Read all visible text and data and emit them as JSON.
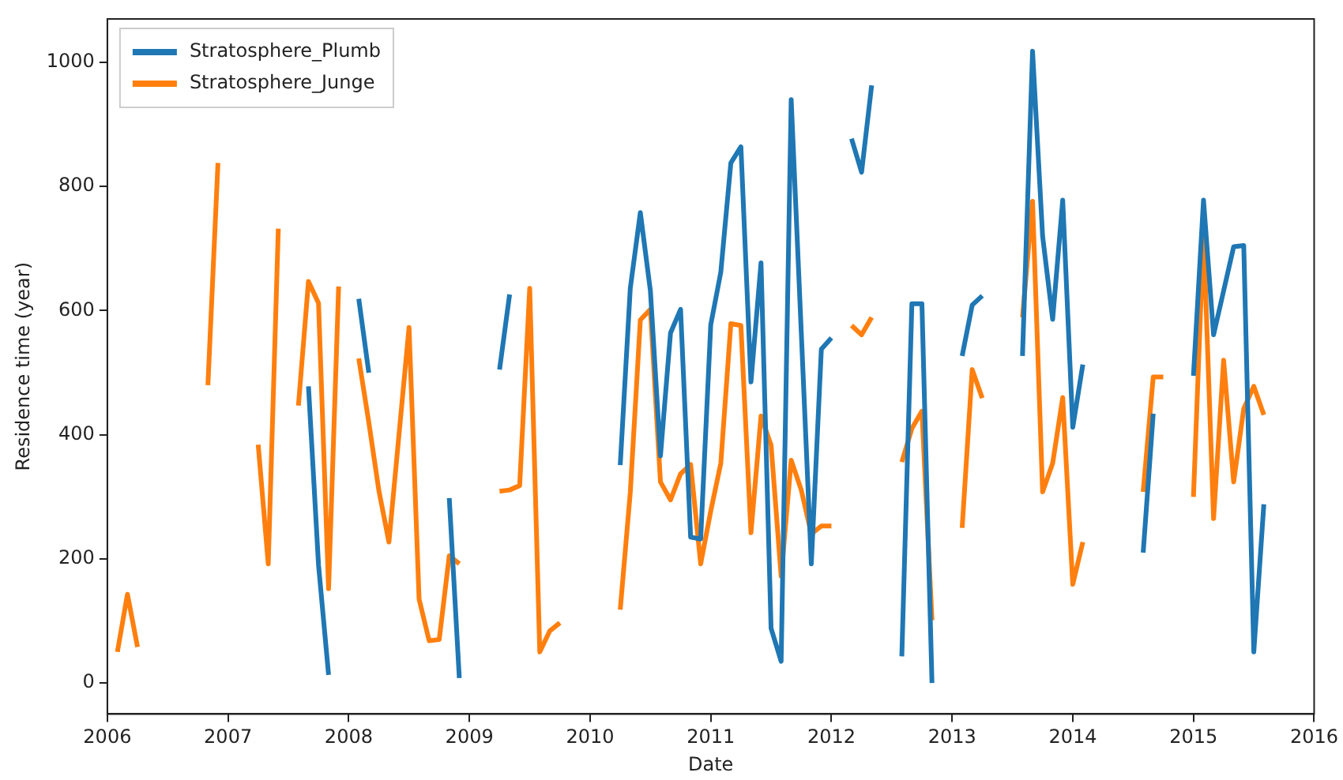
{
  "chart_data": {
    "type": "line",
    "xlabel": "Date",
    "ylabel": "Residence time (year)",
    "legend": "top left",
    "marker": "none",
    "line_style": "solid",
    "grid": false,
    "xlim": [
      "2006",
      "2016"
    ],
    "xticks": [
      "2006",
      "2007",
      "2008",
      "2009",
      "2010",
      "2011",
      "2012",
      "2013",
      "2014",
      "2015",
      "2016"
    ],
    "ylim": [
      -50,
      1070
    ],
    "yticks": [
      0,
      200,
      400,
      600,
      800,
      1000
    ],
    "series": [
      {
        "name": "Stratosphere_Plumb",
        "color": "#1f77b4",
        "x": [
          "2007-09",
          "2007-10",
          "2007-11",
          "2008-01",
          "2008-02",
          "2008-03",
          "2008-06",
          "2008-11",
          "2008-12",
          "2009-02",
          "2009-04",
          "2009-05",
          "2009-10",
          "2010-04",
          "2010-05",
          "2010-06",
          "2010-07",
          "2010-08",
          "2010-09",
          "2010-10",
          "2010-11",
          "2010-12",
          "2011-01",
          "2011-02",
          "2011-03",
          "2011-04",
          "2011-05",
          "2011-06",
          "2011-07",
          "2011-08",
          "2011-09",
          "2011-10",
          "2011-11",
          "2011-12",
          "2012-01",
          "2012-02",
          "2012-03",
          "2012-04",
          "2012-05",
          "2012-06",
          "2012-08",
          "2012-09",
          "2012-10",
          "2012-11",
          "2013-01",
          "2013-02",
          "2013-03",
          "2013-04",
          "2013-06",
          "2013-08",
          "2013-09",
          "2013-10",
          "2013-11",
          "2013-12",
          "2014-01",
          "2014-02",
          "2014-05",
          "2014-08",
          "2014-09",
          "2014-11",
          "2015-01",
          "2015-02",
          "2015-03",
          "2015-04",
          "2015-05",
          "2015-06",
          "2015-07",
          "2015-08"
        ],
        "values": [
          478,
          190,
          13,
          null,
          619,
          500,
          null,
          298,
          8,
          null,
          505,
          626,
          null,
          351,
          636,
          758,
          632,
          366,
          564,
          602,
          235,
          232,
          577,
          662,
          838,
          864,
          485,
          677,
          88,
          35,
          940,
          566,
          192,
          538,
          556,
          null,
          877,
          823,
          963,
          null,
          43,
          611,
          611,
          0,
          null,
          527,
          609,
          624,
          null,
          527,
          1018,
          720,
          586,
          778,
          412,
          513,
          null,
          210,
          434,
          null,
          495,
          778,
          561,
          632,
          703,
          705,
          50,
          288
        ]
      },
      {
        "name": "Stratosphere_Junge",
        "color": "#ff7f0e",
        "x": [
          "2006-02",
          "2006-03",
          "2006-04",
          "2006-07",
          "2006-11",
          "2006-12",
          "2007-02",
          "2007-04",
          "2007-05",
          "2007-06",
          "2007-07",
          "2007-08",
          "2007-09",
          "2007-10",
          "2007-11",
          "2007-12",
          "2008-01",
          "2008-02",
          "2008-03",
          "2008-04",
          "2008-05",
          "2008-06",
          "2008-07",
          "2008-08",
          "2008-09",
          "2008-10",
          "2008-11",
          "2008-12",
          "2009-02",
          "2009-04",
          "2009-05",
          "2009-06",
          "2009-07",
          "2009-08",
          "2009-09",
          "2009-10",
          "2010-01",
          "2010-04",
          "2010-05",
          "2010-06",
          "2010-07",
          "2010-08",
          "2010-09",
          "2010-10",
          "2010-11",
          "2010-12",
          "2011-01",
          "2011-02",
          "2011-03",
          "2011-04",
          "2011-05",
          "2011-06",
          "2011-07",
          "2011-08",
          "2011-09",
          "2011-10",
          "2011-11",
          "2011-12",
          "2012-01",
          "2012-02",
          "2012-03",
          "2012-04",
          "2012-05",
          "2012-06",
          "2012-08",
          "2012-09",
          "2012-10",
          "2012-11",
          "2013-01",
          "2013-02",
          "2013-03",
          "2013-04",
          "2013-06",
          "2013-08",
          "2013-09",
          "2013-10",
          "2013-11",
          "2013-12",
          "2014-01",
          "2014-02",
          "2014-05",
          "2014-08",
          "2014-09",
          "2014-10",
          "2014-11",
          "2015-01",
          "2015-02",
          "2015-03",
          "2015-04",
          "2015-05",
          "2015-06",
          "2015-07",
          "2015-08"
        ],
        "values": [
          50,
          143,
          58,
          null,
          480,
          838,
          null,
          384,
          192,
          732,
          null,
          447,
          647,
          612,
          152,
          639,
          null,
          523,
          420,
          310,
          227,
          400,
          573,
          135,
          68,
          70,
          205,
          192,
          null,
          309,
          311,
          318,
          636,
          50,
          84,
          97,
          null,
          118,
          307,
          585,
          602,
          324,
          295,
          337,
          352,
          192,
          277,
          354,
          579,
          576,
          242,
          430,
          383,
          172,
          359,
          311,
          240,
          253,
          253,
          null,
          576,
          561,
          589,
          null,
          356,
          410,
          438,
          101,
          null,
          250,
          505,
          459,
          null,
          589,
          776,
          308,
          354,
          460,
          159,
          227,
          null,
          308,
          493,
          493,
          null,
          300,
          725,
          265,
          520,
          324,
          442,
          478,
          432
        ]
      }
    ]
  }
}
